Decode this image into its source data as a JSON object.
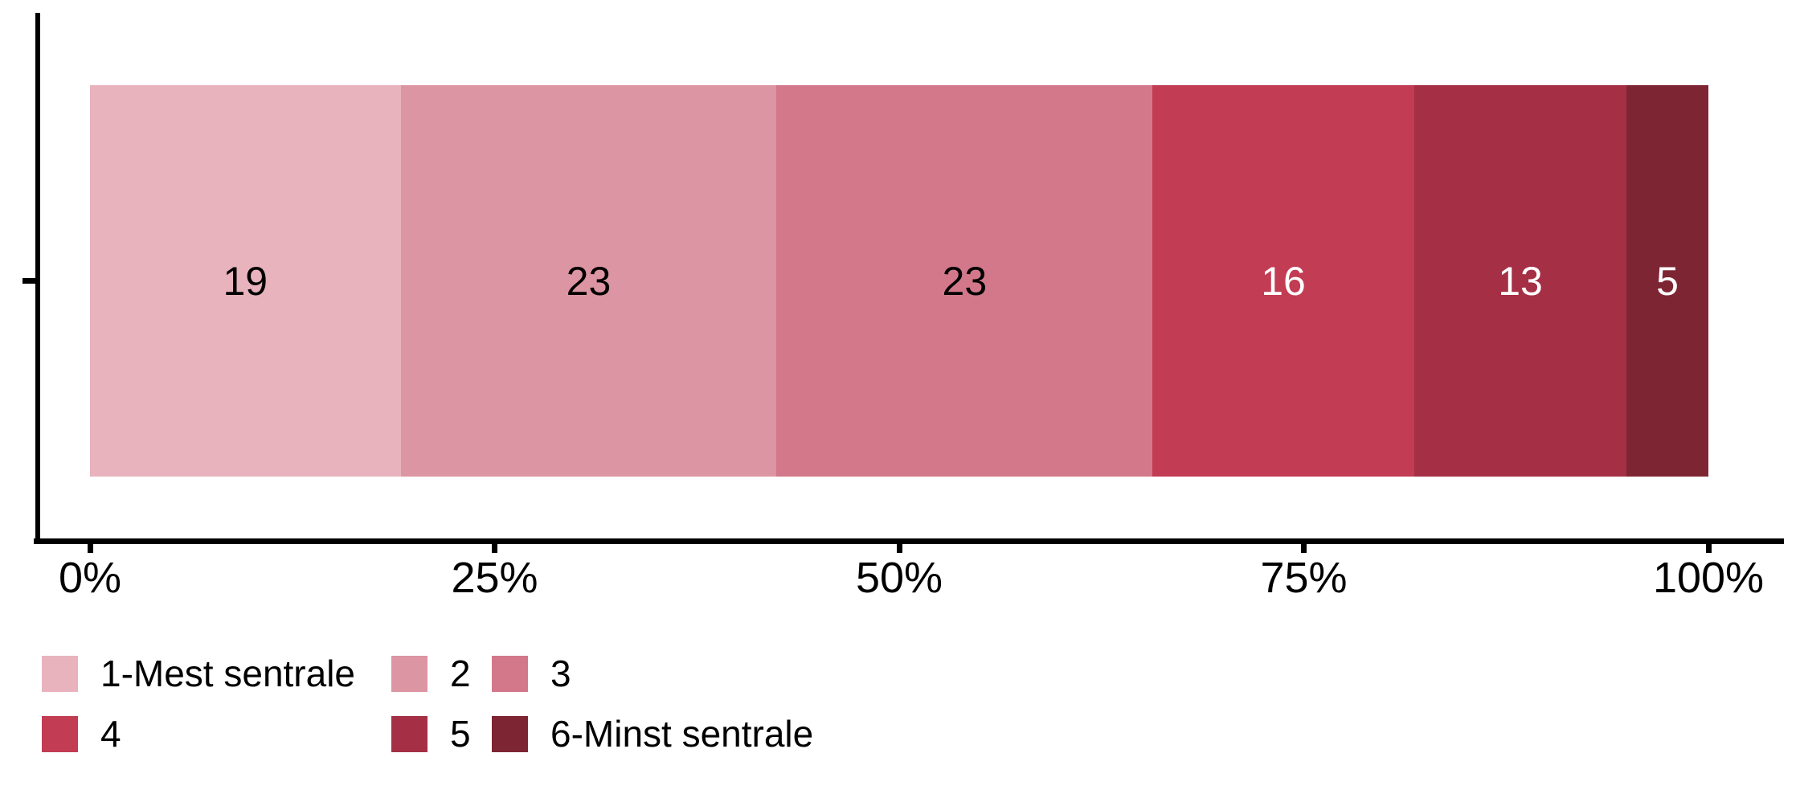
{
  "figure": {
    "background": "#FFFFFF",
    "axis_color": "#000000",
    "text_color": "#000000"
  },
  "chart_data": {
    "type": "bar",
    "subtype": "horizontal-stacked-percent",
    "title": "",
    "xlabel": "",
    "ylabel": "",
    "xlim": [
      0,
      100
    ],
    "grid": false,
    "legend_position": "bottom-left",
    "categories": [
      ""
    ],
    "series": [
      {
        "name": "1-Mest sentrale",
        "value": 19,
        "color": "#E8B3BC",
        "label_color": "#000000"
      },
      {
        "name": "2",
        "value": 23,
        "color": "#DC95A2",
        "label_color": "#000000"
      },
      {
        "name": "3",
        "value": 23,
        "color": "#D3788A",
        "label_color": "#000000"
      },
      {
        "name": "4",
        "value": 16,
        "color": "#C23C53",
        "label_color": "#FFFFFF"
      },
      {
        "name": "5",
        "value": 13,
        "color": "#A52F45",
        "label_color": "#FFFFFF"
      },
      {
        "name": "6-Minst sentrale",
        "value": 5,
        "color": "#7E2533",
        "label_color": "#FFFFFF"
      }
    ],
    "x_ticks": [
      {
        "label": "0%",
        "pos": 0
      },
      {
        "label": "25%",
        "pos": 25
      },
      {
        "label": "50%",
        "pos": 50
      },
      {
        "label": "75%",
        "pos": 75
      },
      {
        "label": "100%",
        "pos": 100
      }
    ]
  }
}
